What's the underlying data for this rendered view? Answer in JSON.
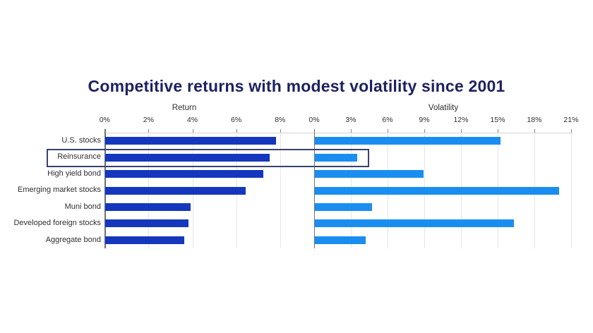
{
  "chart_data": {
    "type": "bar",
    "orientation": "horizontal",
    "title": "Competitive returns with modest volatility since 2001",
    "categories": [
      "U.S. stocks",
      "Reinsurance",
      "High yield bond",
      "Emerging market stocks",
      "Muni bond",
      "Developed foreign stocks",
      "Aggregate bond"
    ],
    "highlighted_category": "Reinsurance",
    "panels": [
      {
        "name": "Return",
        "axis_min": 0,
        "axis_max": 8,
        "tick_step": 2,
        "tick_labels": [
          "0%",
          "2%",
          "4%",
          "6%",
          "8%"
        ],
        "values": [
          7.8,
          7.5,
          7.2,
          6.4,
          3.9,
          3.8,
          3.6
        ],
        "bar_color": "#1537be"
      },
      {
        "name": "Volatility",
        "axis_min": 0,
        "axis_max": 21,
        "tick_step": 3,
        "tick_labels": [
          "0%",
          "3%",
          "6%",
          "9%",
          "12%",
          "15%",
          "18%",
          "21%"
        ],
        "values": [
          15.2,
          3.5,
          8.9,
          20.0,
          4.7,
          16.3,
          4.2
        ],
        "bar_color": "#1a8ef0"
      }
    ],
    "legend": "none",
    "grid": "vertical-ticks-on",
    "colors": {
      "title": "#1e2160",
      "label_text": "#2f2f31",
      "gridline": "#e6e6e9",
      "axis_line": "#6f6f76",
      "tick_mark": "#8a8a90",
      "top_line": "#d2d2d8",
      "highlight_border": "#39426d"
    }
  }
}
